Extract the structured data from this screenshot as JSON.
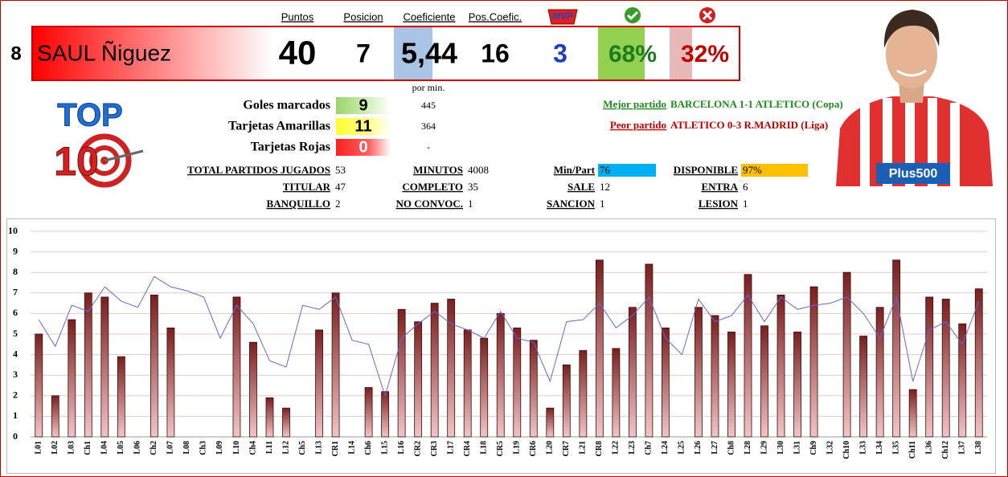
{
  "player": {
    "number": 8,
    "name": "SAUL Ñiguez"
  },
  "summary": {
    "headers": [
      "Puntos",
      "Posicion",
      "Coeficiente",
      "Pos.Coefic.",
      "MVP"
    ],
    "values": [
      40,
      7,
      "5,44",
      16,
      3
    ],
    "win": "68%",
    "loss": "32%"
  },
  "per_min_label": "por min.",
  "cards": [
    {
      "label": "Goles marcados",
      "value": 9,
      "per_min": 445
    },
    {
      "label": "Tarjetas Amarillas",
      "value": 11,
      "per_min": 364
    },
    {
      "label": "Tarjetas Rojas",
      "value": 0,
      "per_min": "-"
    }
  ],
  "best": {
    "label": "Mejor partido",
    "match": "BARCELONA 1-1 ATLETICO (Copa)"
  },
  "worst": {
    "label": "Peor partido",
    "match": "ATLETICO 0-3 R.MADRID (Liga)"
  },
  "stats": [
    [
      "TOTAL PARTIDOS JUGADOS",
      53
    ],
    [
      "MINUTOS",
      4008
    ],
    [
      "Min/Part",
      76
    ],
    [
      "DISPONIBLE",
      "97%"
    ],
    [
      "TITULAR",
      47
    ],
    [
      "COMPLETO",
      35
    ],
    [
      "SALE",
      12
    ],
    [
      "ENTRA",
      6
    ],
    [
      "BANQUILLO",
      2
    ],
    [
      "NO CONVOC.",
      1
    ],
    [
      "SANCION",
      1
    ],
    [
      "LESION",
      1
    ]
  ],
  "logo": {
    "top": "TOP",
    "number": "10"
  },
  "sponsor": "Plus500",
  "chart_data": {
    "type": "bar",
    "categories": [
      "L01",
      "L02",
      "L03",
      "Ch1",
      "L04",
      "L05",
      "L06",
      "Ch2",
      "L07",
      "L08",
      "Ch3",
      "L09",
      "L10",
      "Ch4",
      "L11",
      "L12",
      "Ch5",
      "L13",
      "CR1",
      "L14",
      "Ch6",
      "L15",
      "L16",
      "CR2",
      "CR3",
      "L17",
      "CR4",
      "L18",
      "CR5",
      "L19",
      "CR6",
      "L20",
      "CR7",
      "L21",
      "CR8",
      "L22",
      "L23",
      "Ch7",
      "L24",
      "L25",
      "L26",
      "L27",
      "Ch8",
      "L28",
      "L29",
      "L30",
      "L31",
      "Ch9",
      "L32",
      "Ch10",
      "L33",
      "L34",
      "L35",
      "Ch11",
      "L36",
      "Ch12",
      "L37",
      "L38"
    ],
    "series": [
      {
        "type": "bar",
        "color": "#7a1f1f",
        "values": [
          5.0,
          2.0,
          5.7,
          7.0,
          6.8,
          3.9,
          null,
          6.9,
          5.3,
          null,
          null,
          null,
          6.8,
          4.6,
          1.9,
          1.4,
          null,
          5.2,
          7.0,
          null,
          2.4,
          2.2,
          6.2,
          5.6,
          6.5,
          6.7,
          5.2,
          4.8,
          6.0,
          5.3,
          4.7,
          1.4,
          3.5,
          4.2,
          8.6,
          4.3,
          6.3,
          8.4,
          5.3,
          null,
          6.3,
          5.9,
          5.1,
          7.9,
          5.4,
          6.9,
          5.1,
          7.3,
          null,
          8.0,
          4.9,
          6.3,
          8.6,
          2.3,
          6.8,
          6.7,
          5.5,
          7.2
        ]
      },
      {
        "type": "line",
        "color": "#6666dd",
        "values": [
          5.7,
          4.4,
          6.4,
          6.1,
          7.3,
          6.6,
          6.3,
          7.8,
          7.3,
          7.1,
          6.8,
          4.8,
          6.4,
          5.5,
          3.7,
          3.4,
          6.4,
          6.2,
          6.8,
          4.7,
          4.5,
          2.0,
          4.8,
          5.5,
          6.1,
          5.5,
          5.2,
          4.8,
          6.1,
          4.8,
          4.6,
          2.7,
          5.6,
          5.7,
          6.5,
          5.3,
          5.9,
          6.8,
          4.8,
          4.0,
          6.7,
          5.6,
          5.9,
          6.9,
          5.6,
          6.8,
          6.2,
          6.4,
          6.5,
          6.8,
          6.0,
          4.8,
          6.8,
          2.7,
          5.2,
          5.6,
          4.5,
          6.6
        ]
      }
    ],
    "ylim": [
      0,
      10
    ],
    "yticks": [
      0,
      1,
      2,
      3,
      4,
      5,
      6,
      7,
      8,
      9,
      10
    ],
    "grid": true
  }
}
